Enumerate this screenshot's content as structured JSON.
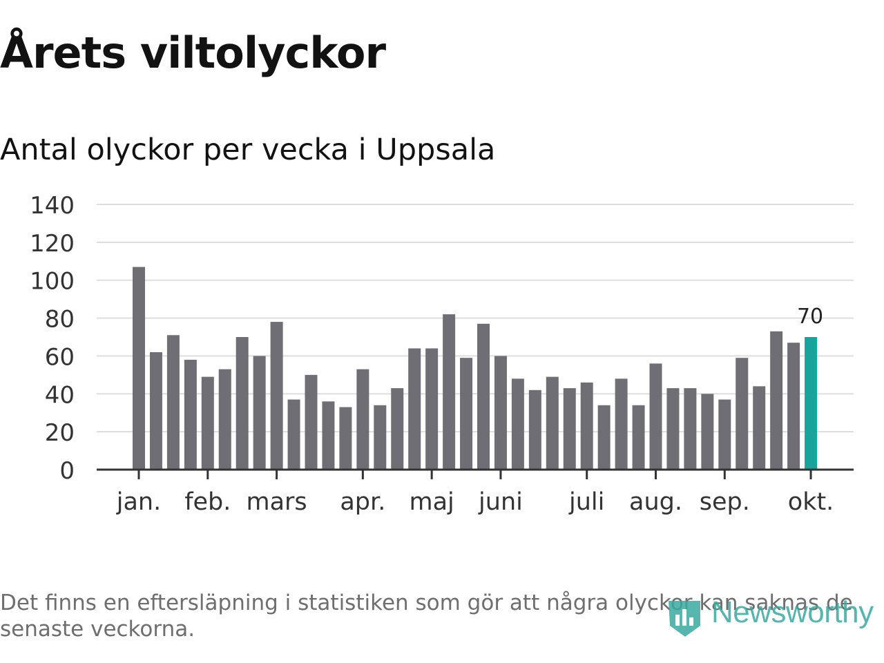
{
  "header": {
    "title": "Årets viltolyckor",
    "subtitle": "Antal olyckor per vecka i Uppsala"
  },
  "footnote": "Det finns en eftersläpning i statistiken som gör att några olyckor kan saknas de senaste veckorna.",
  "brand": {
    "name": "Newsworthy",
    "icon": "newsworthy-logo-icon"
  },
  "colors": {
    "bar": "#6f6e74",
    "highlight": "#1aa39a",
    "grid": "#dddddd",
    "axis": "#333333",
    "text": "#333333"
  },
  "chart_data": {
    "type": "bar",
    "title": "Antal olyckor per vecka i Uppsala",
    "xlabel": "",
    "ylabel": "",
    "ylim": [
      0,
      140
    ],
    "yticks": [
      0,
      20,
      40,
      60,
      80,
      100,
      120,
      140
    ],
    "grid": true,
    "weeks": [
      1,
      2,
      3,
      4,
      5,
      6,
      7,
      8,
      9,
      10,
      11,
      12,
      13,
      14,
      15,
      16,
      17,
      18,
      19,
      20,
      21,
      22,
      23,
      24,
      25,
      26,
      27,
      28,
      29,
      30,
      31,
      32,
      33,
      34,
      35,
      36,
      37,
      38,
      39,
      40
    ],
    "values": [
      107,
      62,
      71,
      58,
      49,
      53,
      70,
      60,
      78,
      37,
      50,
      36,
      33,
      53,
      34,
      43,
      64,
      64,
      82,
      59,
      77,
      60,
      48,
      42,
      49,
      43,
      46,
      34,
      48,
      34,
      56,
      43,
      43,
      40,
      37,
      59,
      44,
      73,
      67,
      70
    ],
    "month_ticks": [
      {
        "label": "jan.",
        "week": 1
      },
      {
        "label": "feb.",
        "week": 5
      },
      {
        "label": "mars",
        "week": 9
      },
      {
        "label": "apr.",
        "week": 14
      },
      {
        "label": "maj",
        "week": 18
      },
      {
        "label": "juni",
        "week": 22
      },
      {
        "label": "juli",
        "week": 27
      },
      {
        "label": "aug.",
        "week": 31
      },
      {
        "label": "sep.",
        "week": 35
      },
      {
        "label": "okt.",
        "week": 40
      }
    ],
    "highlight": {
      "week": 40,
      "value": 70,
      "label": "70"
    }
  }
}
